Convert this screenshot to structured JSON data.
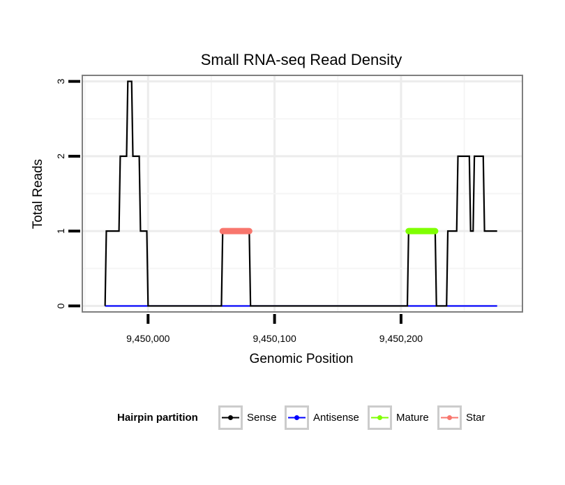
{
  "chart_data": {
    "type": "line",
    "title": "Small RNA-seq Read Density",
    "xlabel": "Genomic Position",
    "ylabel": "Total Reads",
    "xlim": [
      9449948,
      9450296
    ],
    "ylim": [
      -0.08,
      3.08
    ],
    "x_ticks": [
      9450000,
      9450100,
      9450200
    ],
    "x_tick_labels": [
      "9,450,000",
      "9,450,100",
      "9,450,200"
    ],
    "y_ticks": [
      0,
      1,
      2,
      3
    ],
    "y_tick_labels": [
      "0",
      "1",
      "2",
      "3"
    ],
    "grid": true,
    "legend": {
      "title": "Hairpin partition",
      "position": "bottom"
    },
    "series": [
      {
        "name": "Sense",
        "color": "#000000",
        "style": "line",
        "x": [
          9449966,
          9449967,
          9449977,
          9449978,
          9449983,
          9449984,
          9449987,
          9449988,
          9449993,
          9449994,
          9449999,
          9450000,
          9450058,
          9450059,
          9450080,
          9450081,
          9450205,
          9450206,
          9450227,
          9450228,
          9450236,
          9450237,
          9450244,
          9450245,
          9450254,
          9450255,
          9450257,
          9450258,
          9450265,
          9450266,
          9450276
        ],
        "y": [
          0,
          1,
          1,
          2,
          2,
          3,
          3,
          2,
          2,
          1,
          1,
          0,
          0,
          1,
          1,
          0,
          0,
          1,
          1,
          0,
          0,
          1,
          1,
          2,
          2,
          1,
          1,
          2,
          2,
          1,
          1
        ]
      },
      {
        "name": "Antisense",
        "color": "#0000ff",
        "style": "line",
        "x": [
          9449966,
          9450276
        ],
        "y": [
          0,
          0
        ]
      },
      {
        "name": "Mature",
        "color": "#7fff00",
        "style": "thick-segment",
        "x": [
          9450206,
          9450227
        ],
        "y": [
          1,
          1
        ]
      },
      {
        "name": "Star",
        "color": "#f8766d",
        "style": "thick-segment",
        "x": [
          9450059,
          9450080
        ],
        "y": [
          1,
          1
        ]
      }
    ]
  }
}
